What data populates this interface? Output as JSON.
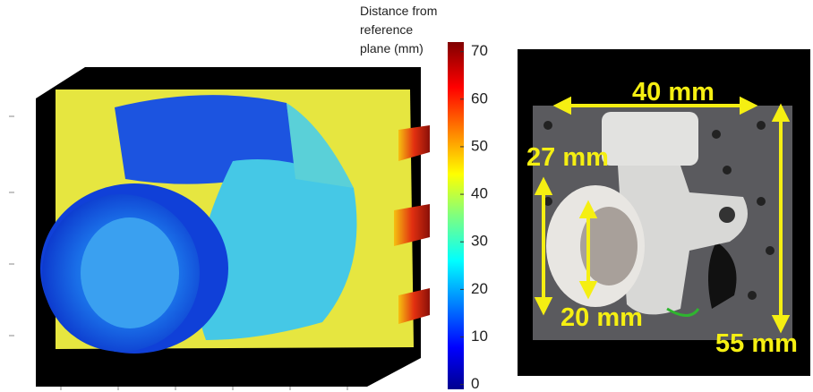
{
  "colorbar": {
    "label": [
      "Distance from",
      "reference",
      "plane (mm)"
    ],
    "range": [
      -1,
      72
    ],
    "ticks": [
      0,
      10,
      20,
      30,
      40,
      50,
      60,
      70
    ]
  },
  "photo": {
    "labels": [
      "40 mm",
      "27 mm",
      "20 mm",
      "55 mm"
    ]
  }
}
